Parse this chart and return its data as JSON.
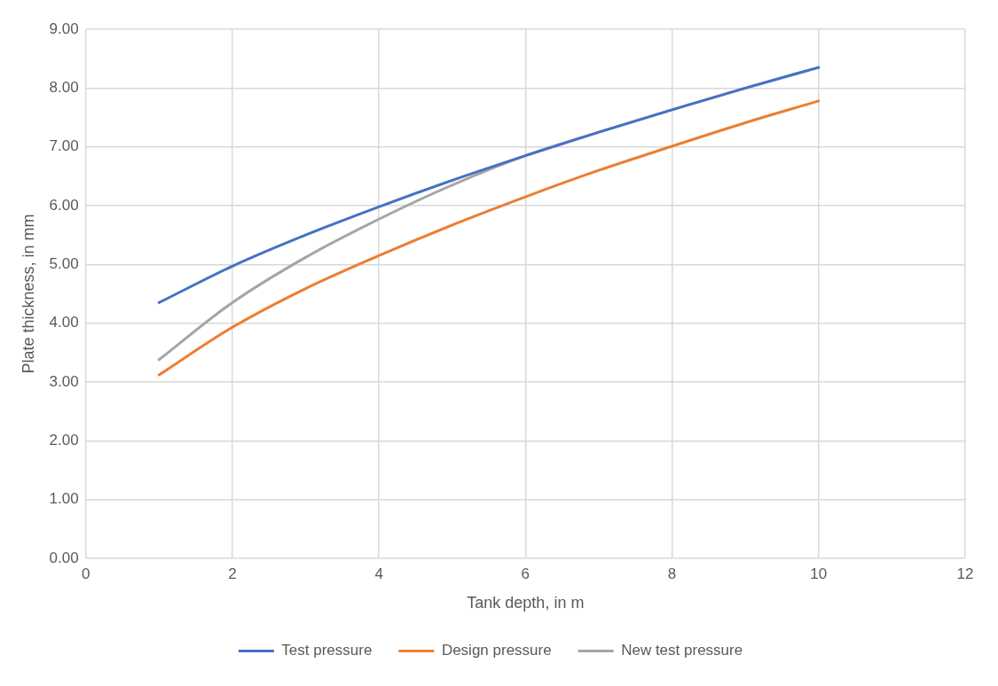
{
  "chart_data": {
    "type": "line",
    "xlabel": "Tank depth, in m",
    "ylabel": "Plate thickness, in mm",
    "x": [
      1,
      2,
      3,
      4,
      5,
      6,
      7,
      8,
      9,
      10
    ],
    "series": [
      {
        "name": "Test pressure",
        "color": "#4472c4",
        "values": [
          4.35,
          4.97,
          5.5,
          5.98,
          6.43,
          6.85,
          7.25,
          7.63,
          8.0,
          8.35
        ]
      },
      {
        "name": "Design pressure",
        "color": "#ed7d31",
        "values": [
          3.12,
          3.93,
          4.59,
          5.15,
          5.67,
          6.15,
          6.6,
          7.01,
          7.41,
          7.78
        ]
      },
      {
        "name": "New test pressure",
        "color": "#a5a5a5",
        "values": [
          3.38,
          4.35,
          5.12,
          5.77,
          6.35,
          6.85,
          7.25,
          7.63,
          8.0,
          8.35
        ]
      }
    ],
    "xlim": [
      0,
      12
    ],
    "xticks": [
      0,
      2,
      4,
      6,
      8,
      10,
      12
    ],
    "ylim": [
      0,
      9
    ],
    "yticks": [
      {
        "value": 0,
        "label": "0.00"
      },
      {
        "value": 1,
        "label": "1.00"
      },
      {
        "value": 2,
        "label": "2.00"
      },
      {
        "value": 3,
        "label": "3.00"
      },
      {
        "value": 4,
        "label": "4.00"
      },
      {
        "value": 5,
        "label": "5.00"
      },
      {
        "value": 6,
        "label": "6.00"
      },
      {
        "value": 7,
        "label": "7.00"
      },
      {
        "value": 8,
        "label": "8.00"
      },
      {
        "value": 9,
        "label": "9.00"
      }
    ],
    "grid": true,
    "legend": "bottom",
    "marker": "none",
    "line_style": "solid"
  }
}
